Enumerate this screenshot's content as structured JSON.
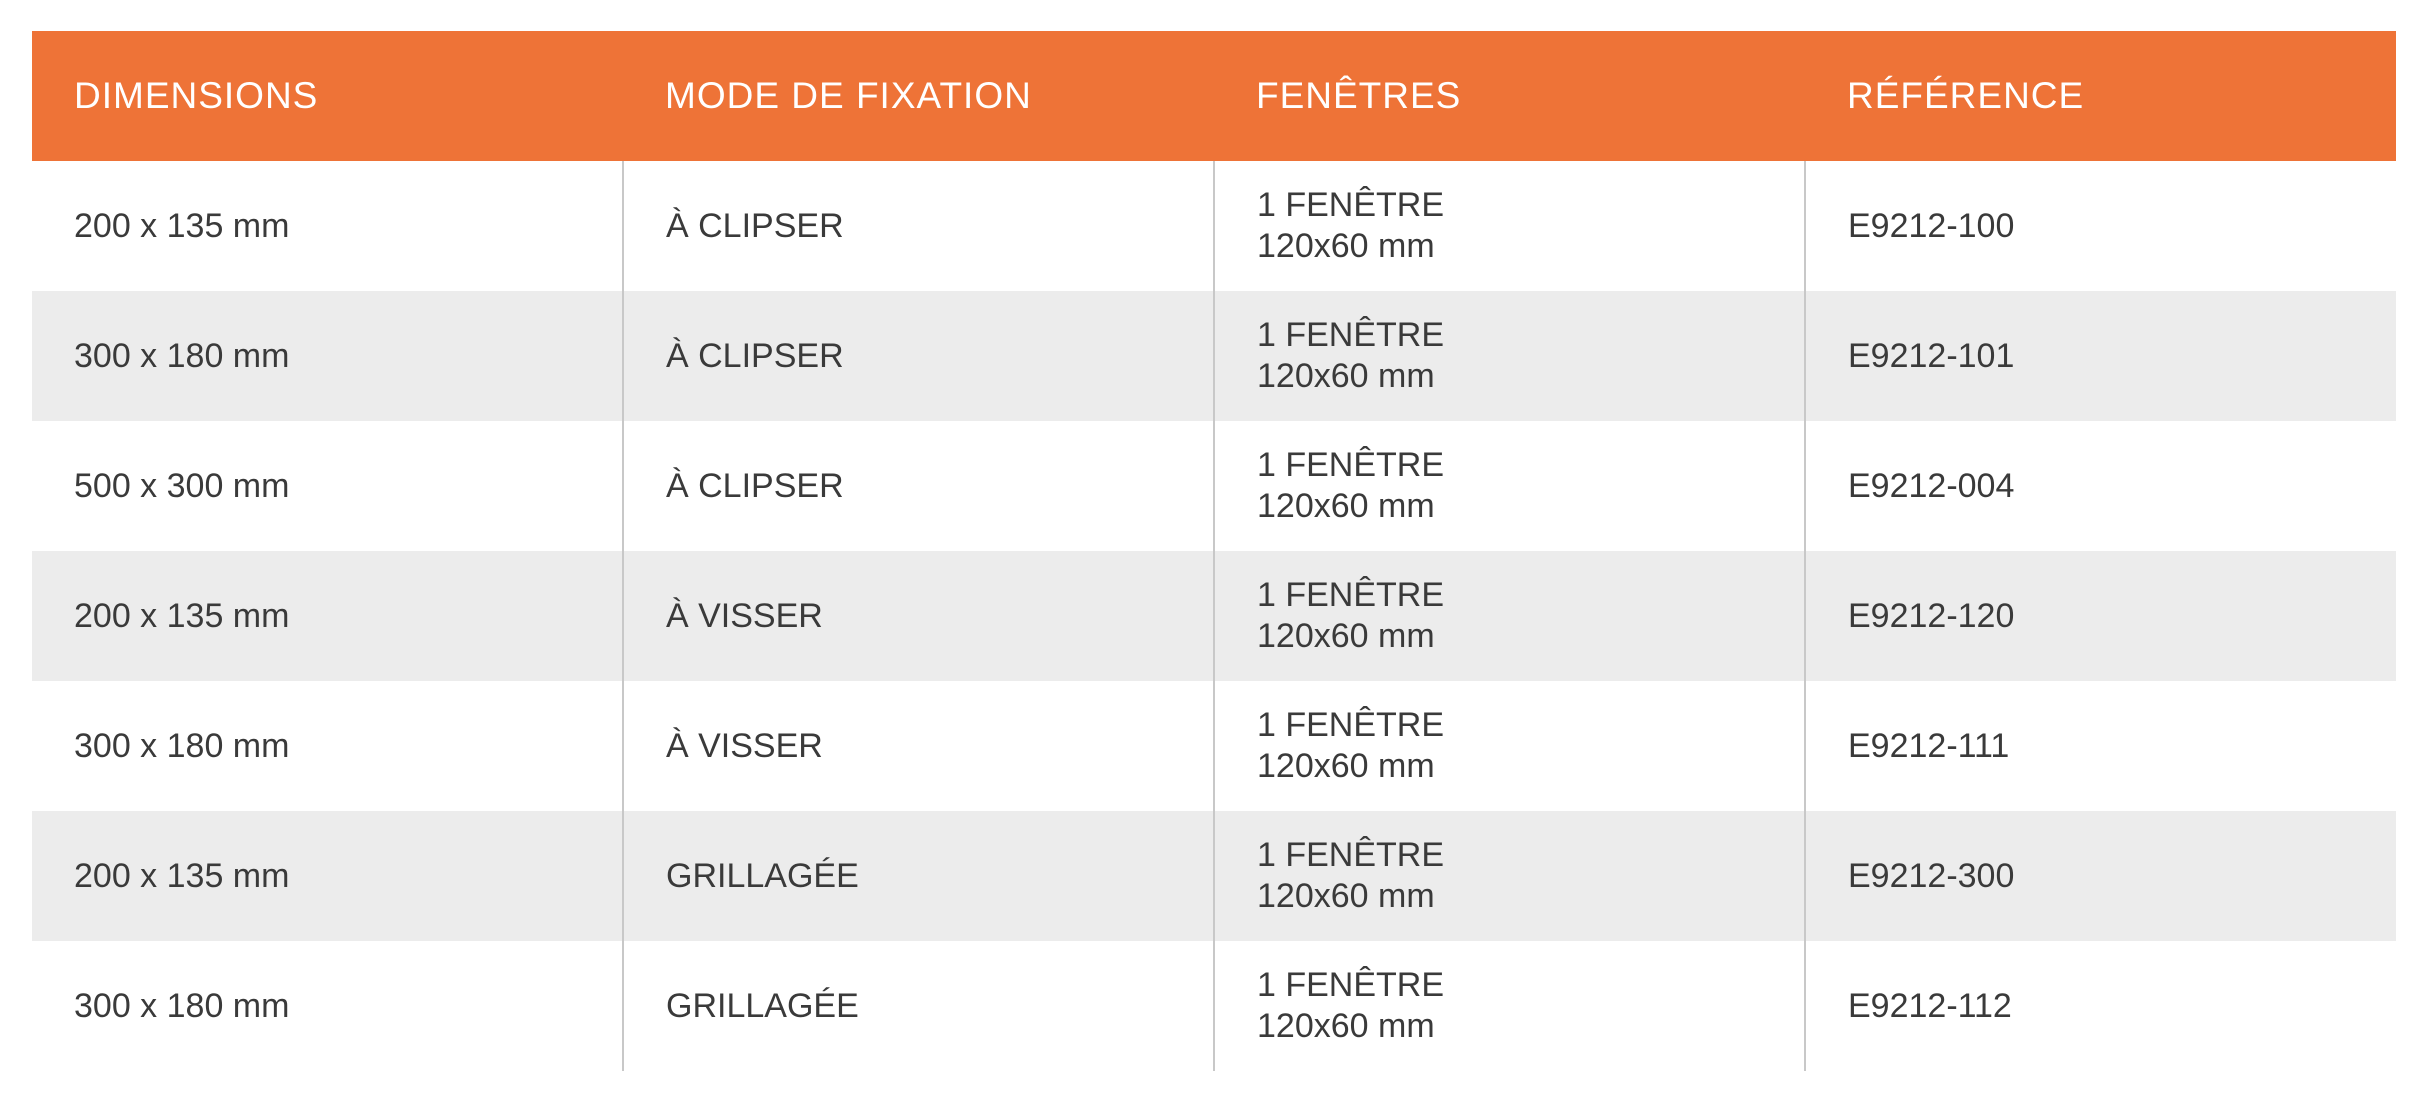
{
  "table": {
    "headers": [
      "DIMENSIONS",
      "MODE DE FIXATION",
      "FENÊTRES",
      "RÉFÉRENCE"
    ],
    "rows": [
      {
        "dimensions": "200 x 135 mm",
        "fixation": "À CLIPSER",
        "fenetres_line1": "1 FENÊTRE",
        "fenetres_line2": "120x60 mm",
        "reference": "E9212-100"
      },
      {
        "dimensions": "300 x 180 mm",
        "fixation": "À CLIPSER",
        "fenetres_line1": "1 FENÊTRE",
        "fenetres_line2": "120x60 mm",
        "reference": "E9212-101"
      },
      {
        "dimensions": "500 x 300 mm",
        "fixation": "À CLIPSER",
        "fenetres_line1": "1 FENÊTRE",
        "fenetres_line2": "120x60 mm",
        "reference": "E9212-004"
      },
      {
        "dimensions": "200 x 135 mm",
        "fixation": "À VISSER",
        "fenetres_line1": "1 FENÊTRE",
        "fenetres_line2": "120x60 mm",
        "reference": "E9212-120"
      },
      {
        "dimensions": "300 x 180 mm",
        "fixation": "À VISSER",
        "fenetres_line1": "1 FENÊTRE",
        "fenetres_line2": "120x60 mm",
        "reference": "E9212-111"
      },
      {
        "dimensions": "200 x 135 mm",
        "fixation": "GRILLAGÉE",
        "fenetres_line1": "1 FENÊTRE",
        "fenetres_line2": "120x60 mm",
        "reference": "E9212-300"
      },
      {
        "dimensions": "300 x 180 mm",
        "fixation": "GRILLAGÉE",
        "fenetres_line1": "1 FENÊTRE",
        "fenetres_line2": "120x60 mm",
        "reference": "E9212-112"
      }
    ]
  },
  "colors": {
    "header_background": "#ee7337",
    "header_text": "#ffffff",
    "striped_row": "#ececec",
    "body_text": "#3a3a3a"
  }
}
